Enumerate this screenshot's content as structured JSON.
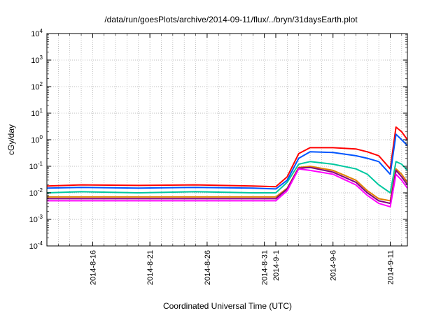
{
  "chart_data": {
    "type": "line",
    "title": "/data/run/goesPlots/archive/2014-09-11/flux/../bryn/31daysEarth.plot",
    "xlabel": "Coordinated Universal Time (UTC)",
    "ylabel": "cGy/day",
    "yscale": "log",
    "ylim": [
      0.0001,
      10000
    ],
    "xlim": [
      "2014-08-12",
      "2014-09-12T12:00"
    ],
    "grid": true,
    "legend": "none",
    "y_ticks": [
      {
        "value": 0.0001,
        "base": "10",
        "exp": "-4"
      },
      {
        "value": 0.001,
        "base": "10",
        "exp": "-3"
      },
      {
        "value": 0.01,
        "base": "10",
        "exp": "-2"
      },
      {
        "value": 0.1,
        "base": "10",
        "exp": "-1"
      },
      {
        "value": 1,
        "base": "10",
        "exp": "0"
      },
      {
        "value": 10,
        "base": "10",
        "exp": "1"
      },
      {
        "value": 100,
        "base": "10",
        "exp": "2"
      },
      {
        "value": 1000,
        "base": "10",
        "exp": "3"
      },
      {
        "value": 10000,
        "base": "10",
        "exp": "4"
      }
    ],
    "x_ticks": [
      {
        "date": "2014-08-16",
        "label": "2014-8-16"
      },
      {
        "date": "2014-08-21",
        "label": "2014-8-21"
      },
      {
        "date": "2014-08-26",
        "label": "2014-8-26"
      },
      {
        "date": "2014-08-31",
        "label": "2014-8-31"
      },
      {
        "date": "2014-09-01",
        "label": "2014-9-1"
      },
      {
        "date": "2014-09-06",
        "label": "2014-9-6"
      },
      {
        "date": "2014-09-11",
        "label": "2014-9-11"
      }
    ],
    "series": [
      {
        "color": "#ff0000",
        "x": [
          "2014-08-12",
          "2014-08-15",
          "2014-08-20",
          "2014-08-25",
          "2014-08-30",
          "2014-09-01",
          "2014-09-02",
          "2014-09-03",
          "2014-09-04",
          "2014-09-06",
          "2014-09-08",
          "2014-09-09",
          "2014-09-10",
          "2014-09-11",
          "2014-09-11T12:00",
          "2014-09-12",
          "2014-09-12T12:00"
        ],
        "y": [
          0.018,
          0.02,
          0.019,
          0.02,
          0.018,
          0.017,
          0.04,
          0.3,
          0.5,
          0.5,
          0.45,
          0.35,
          0.25,
          0.08,
          3.0,
          2.0,
          1.0
        ]
      },
      {
        "color": "#0055ff",
        "x": [
          "2014-08-12",
          "2014-08-15",
          "2014-08-20",
          "2014-08-25",
          "2014-08-30",
          "2014-09-01",
          "2014-09-02",
          "2014-09-03",
          "2014-09-04",
          "2014-09-06",
          "2014-09-08",
          "2014-09-09",
          "2014-09-10",
          "2014-09-11",
          "2014-09-11T12:00",
          "2014-09-12",
          "2014-09-12T12:00"
        ],
        "y": [
          0.015,
          0.016,
          0.015,
          0.016,
          0.015,
          0.014,
          0.03,
          0.2,
          0.35,
          0.33,
          0.25,
          0.2,
          0.15,
          0.05,
          1.6,
          1.0,
          0.6
        ]
      },
      {
        "color": "#00c8a0",
        "x": [
          "2014-08-12",
          "2014-08-15",
          "2014-08-20",
          "2014-08-25",
          "2014-08-30",
          "2014-09-01",
          "2014-09-02",
          "2014-09-03",
          "2014-09-04",
          "2014-09-06",
          "2014-09-08",
          "2014-09-09",
          "2014-09-10",
          "2014-09-11",
          "2014-09-11T12:00",
          "2014-09-12",
          "2014-09-12T12:00"
        ],
        "y": [
          0.01,
          0.011,
          0.01,
          0.011,
          0.01,
          0.01,
          0.025,
          0.12,
          0.15,
          0.12,
          0.08,
          0.05,
          0.02,
          0.01,
          0.15,
          0.12,
          0.07
        ]
      },
      {
        "color": "#e08000",
        "x": [
          "2014-08-12",
          "2014-08-15",
          "2014-08-20",
          "2014-08-25",
          "2014-08-30",
          "2014-09-01",
          "2014-09-02",
          "2014-09-03",
          "2014-09-04",
          "2014-09-06",
          "2014-09-08",
          "2014-09-09",
          "2014-09-10",
          "2014-09-11",
          "2014-09-11T12:00",
          "2014-09-12",
          "2014-09-12T12:00"
        ],
        "y": [
          0.007,
          0.007,
          0.007,
          0.007,
          0.007,
          0.007,
          0.015,
          0.09,
          0.1,
          0.07,
          0.03,
          0.012,
          0.006,
          0.005,
          0.08,
          0.05,
          0.025
        ]
      },
      {
        "color": "#800080",
        "x": [
          "2014-08-12",
          "2014-08-15",
          "2014-08-20",
          "2014-08-25",
          "2014-08-30",
          "2014-09-01",
          "2014-09-02",
          "2014-09-03",
          "2014-09-04",
          "2014-09-06",
          "2014-09-08",
          "2014-09-09",
          "2014-09-10",
          "2014-09-11",
          "2014-09-11T12:00",
          "2014-09-12",
          "2014-09-12T12:00"
        ],
        "y": [
          0.006,
          0.006,
          0.006,
          0.006,
          0.006,
          0.006,
          0.014,
          0.085,
          0.09,
          0.06,
          0.025,
          0.01,
          0.005,
          0.004,
          0.07,
          0.04,
          0.02
        ]
      },
      {
        "color": "#ff00ff",
        "x": [
          "2014-08-12",
          "2014-08-15",
          "2014-08-20",
          "2014-08-25",
          "2014-08-30",
          "2014-09-01",
          "2014-09-02",
          "2014-09-03",
          "2014-09-04",
          "2014-09-06",
          "2014-09-08",
          "2014-09-09",
          "2014-09-10",
          "2014-09-11",
          "2014-09-11T12:00",
          "2014-09-12",
          "2014-09-12T12:00"
        ],
        "y": [
          0.005,
          0.005,
          0.005,
          0.005,
          0.005,
          0.005,
          0.012,
          0.08,
          0.07,
          0.05,
          0.02,
          0.008,
          0.004,
          0.003,
          0.05,
          0.03,
          0.015
        ]
      }
    ]
  }
}
